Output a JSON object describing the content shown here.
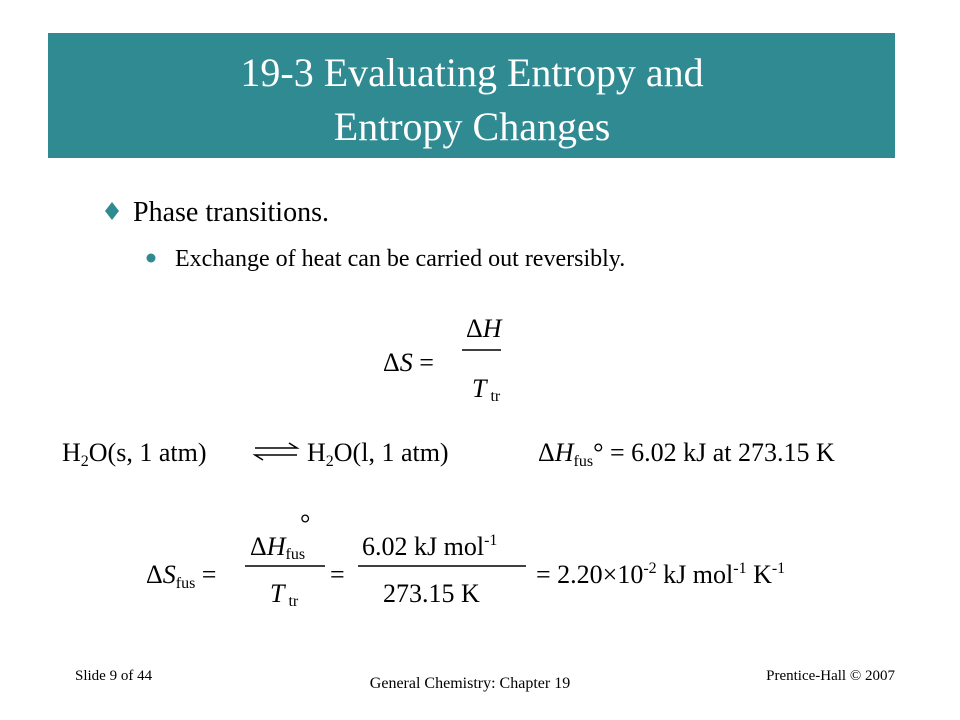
{
  "title": [
    "19-3 Evaluating Entropy and",
    "Entropy Changes"
  ],
  "bullets": [
    {
      "text": "Phase transitions.",
      "sub": [
        "Exchange of heat can be carried out reversibly."
      ]
    }
  ],
  "eq1": {
    "lhs": [
      "Δ",
      "S",
      " ="
    ],
    "num": [
      "Δ",
      "H"
    ],
    "den": [
      "T",
      "tr"
    ]
  },
  "eq2": {
    "reactant": [
      "H",
      "2",
      "O(s, 1 atm)"
    ],
    "product": [
      "H",
      "2",
      "O(l, 1 atm)"
    ],
    "enthalpy": [
      "Δ",
      "H",
      "fus",
      "° = 6.02 kJ at 273.15 K"
    ]
  },
  "eq3": {
    "lhs": [
      "Δ",
      "S",
      "fus",
      " ="
    ],
    "frac1_num": [
      "Δ",
      "H",
      "fus",
      "°"
    ],
    "frac1_den": [
      "T",
      "tr"
    ],
    "equals": "=",
    "frac2_num": [
      "6.02 kJ mol",
      "-1"
    ],
    "frac2_den": "273.15 K",
    "result": [
      "= 2.20×10",
      "-2",
      " kJ mol",
      "-1",
      " K",
      "-1"
    ]
  },
  "footer": {
    "slide": "Slide 9 of 44",
    "course": "General Chemistry: Chapter 19",
    "publisher": "Prentice-Hall © 2007"
  }
}
